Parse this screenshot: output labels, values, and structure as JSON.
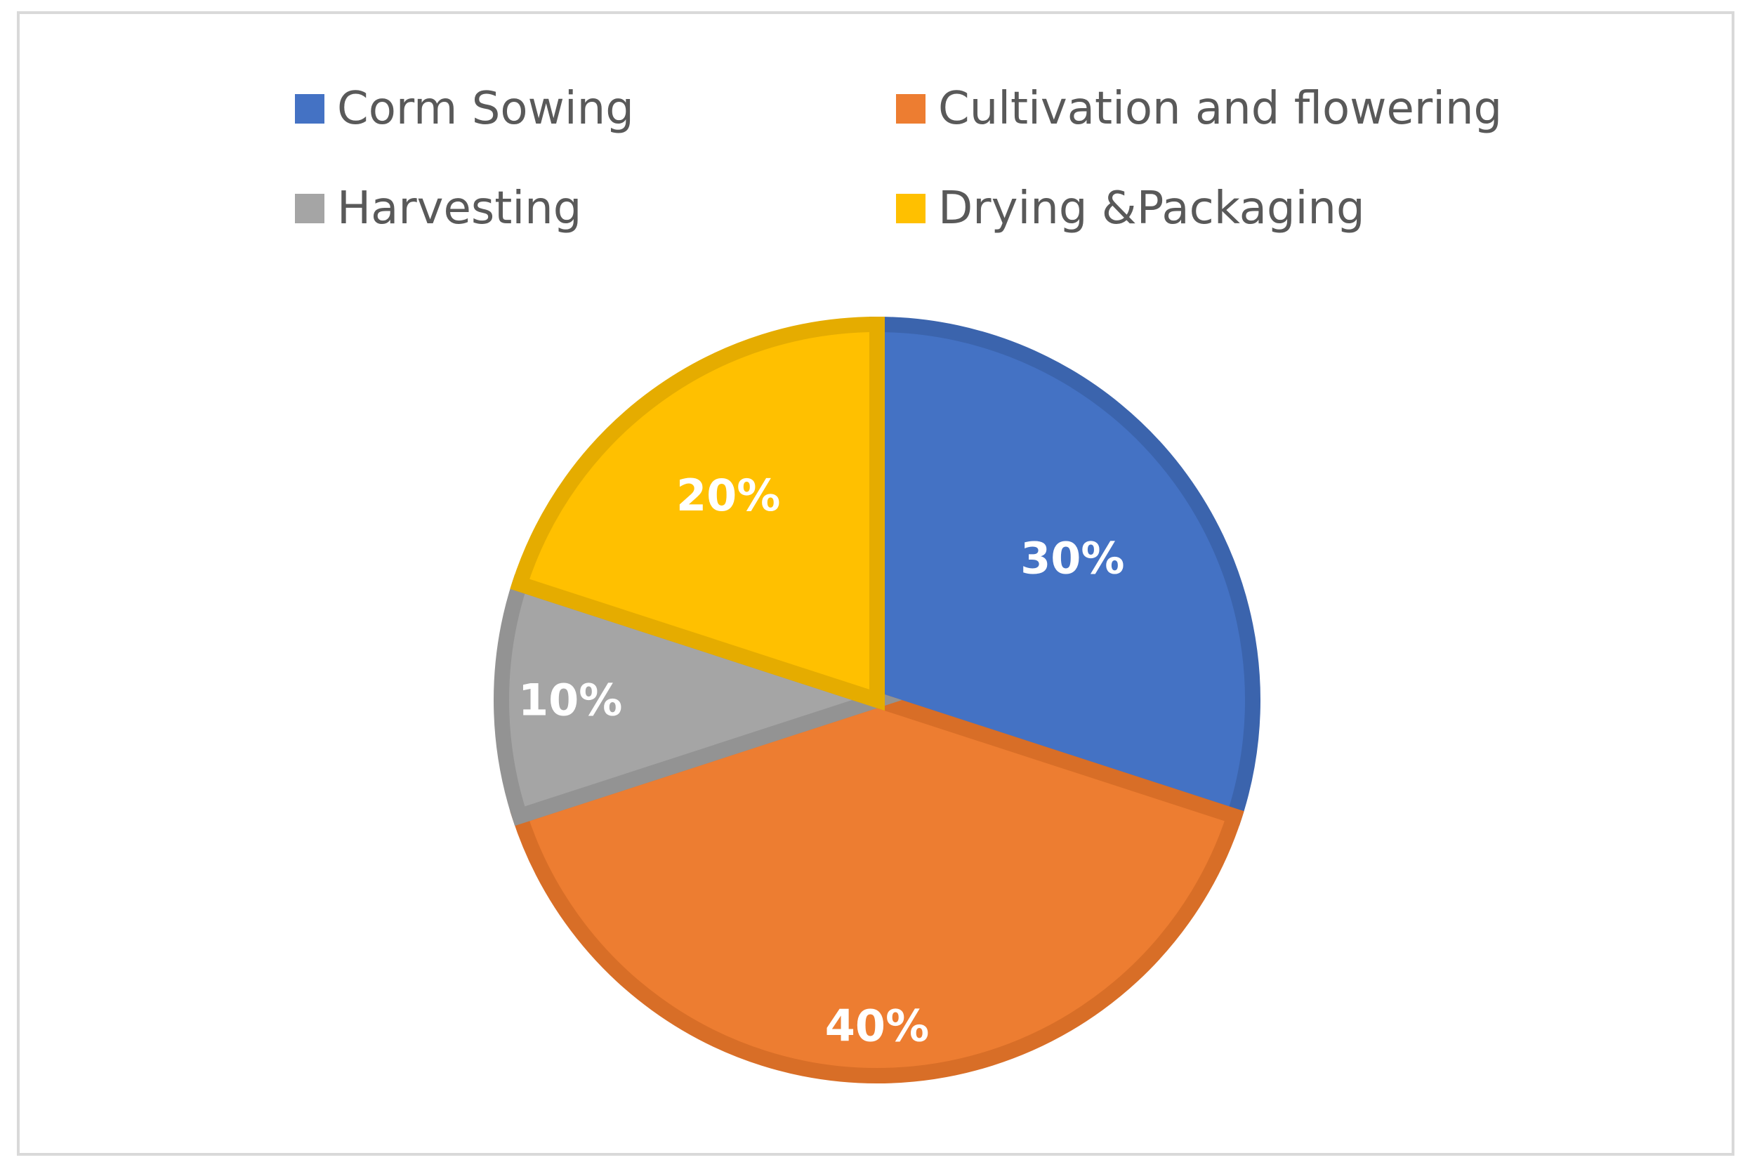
{
  "chart_data": {
    "type": "pie",
    "categories": [
      "Corm Sowing",
      "Cultivation and flowering",
      "Harvesting",
      "Drying &Packaging"
    ],
    "values": [
      30,
      40,
      10,
      20
    ],
    "labels": [
      "30%",
      "40%",
      "10%",
      "20%"
    ],
    "colors": [
      "#4472C4",
      "#ED7D31",
      "#A5A5A5",
      "#FFC000"
    ],
    "border_colors": [
      "#3B64AD",
      "#D86E27",
      "#939393",
      "#E5AC00"
    ],
    "legend_position": "top",
    "start_angle_deg": 0,
    "direction": "clockwise"
  }
}
